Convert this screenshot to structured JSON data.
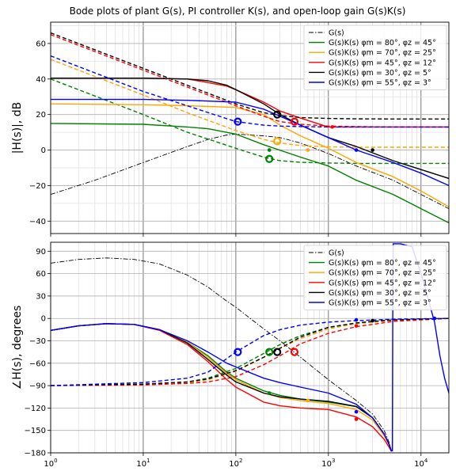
{
  "figure": {
    "title": "Bode plots of plant G(s), PI controller K(s), and open-loop gain G(s)K(s)"
  },
  "chart_data": [
    {
      "type": "line",
      "panel": "magnitude",
      "ylabel": "|H(s)|, dB",
      "xlabel": "",
      "xscale": "log",
      "xlim": [
        1,
        20000
      ],
      "ylim": [
        -47,
        72
      ],
      "yticks": [
        -40,
        -20,
        0,
        20,
        40,
        60
      ],
      "grid": true,
      "legend_position": "top-right",
      "colors": {
        "plant": "#000000",
        "pm80": "#008000",
        "pm70": "#ffa500",
        "pm45": "#ff0000",
        "pm30": "#000000",
        "pm55": "#0000ff"
      },
      "legend": [
        {
          "label": "G(s)",
          "color": "#000000",
          "style": "dashdot"
        },
        {
          "label": "G(s)K(s) φm = 80°, φz = 45°",
          "color": "#008000",
          "style": "solid"
        },
        {
          "label": "G(s)K(s) φm = 70°, φz = 25°",
          "color": "#ffa500",
          "style": "solid"
        },
        {
          "label": "G(s)K(s) φm = 45°, φz = 12°",
          "color": "#ff0000",
          "style": "solid"
        },
        {
          "label": "G(s)K(s) φm = 30°, φz = 5°",
          "color": "#000000",
          "style": "solid"
        },
        {
          "label": "G(s)K(s) φm = 55°, φz = 3°",
          "color": "#0000ff",
          "style": "solid"
        }
      ],
      "series": [
        {
          "name": "G(s)",
          "color": "#000000",
          "style": "dashdot",
          "x": [
            1,
            3,
            10,
            30,
            50,
            80,
            100,
            200,
            300,
            500,
            1000,
            2000,
            5000,
            10000,
            20000
          ],
          "y": [
            -25,
            -17,
            -7,
            2,
            6,
            8.5,
            9,
            8,
            7,
            4,
            -2,
            -9,
            -17,
            -25,
            -33
          ]
        },
        {
          "name": "K(s) φm=80°",
          "color": "#008000",
          "style": "dashed",
          "x": [
            1,
            10,
            30,
            100,
            200,
            300,
            500,
            1000,
            2000,
            5000,
            20000
          ],
          "y": [
            40,
            20,
            10,
            1,
            -4,
            -6,
            -6.9,
            -7.3,
            -7.5,
            -7.5,
            -7.5
          ]
        },
        {
          "name": "G(s)K(s) φm=80°",
          "color": "#008000",
          "style": "solid",
          "x": [
            1,
            10,
            30,
            50,
            100,
            200,
            500,
            1000,
            2000,
            5000,
            10000,
            20000
          ],
          "y": [
            15,
            14.5,
            13,
            12,
            9,
            3,
            -4,
            -9,
            -17,
            -25,
            -33,
            -41
          ]
        },
        {
          "name": "K(s) φm=70°",
          "color": "#ffa500",
          "style": "dashed",
          "x": [
            1,
            10,
            30,
            100,
            200,
            300,
            500,
            1000,
            2000,
            5000,
            20000
          ],
          "y": [
            51,
            31,
            21,
            11,
            6,
            4,
            2.5,
            1.8,
            1.6,
            1.6,
            1.6
          ]
        },
        {
          "name": "G(s)K(s) φm=70°",
          "color": "#ffa500",
          "style": "solid",
          "x": [
            1,
            10,
            30,
            100,
            200,
            300,
            500,
            1000,
            2000,
            5000,
            10000,
            20000
          ],
          "y": [
            26,
            25.5,
            25,
            24,
            20,
            14,
            8,
            1,
            -7,
            -15,
            -23,
            -32
          ]
        },
        {
          "name": "K(s) φm=45°",
          "color": "#ff0000",
          "style": "dashed",
          "x": [
            1,
            10,
            100,
            200,
            300,
            500,
            1000,
            2000,
            5000,
            20000
          ],
          "y": [
            65,
            45,
            25,
            19,
            16,
            14.5,
            13.5,
            13.2,
            13,
            13
          ]
        },
        {
          "name": "G(s)K(s) φm=45°",
          "color": "#ff0000",
          "style": "solid",
          "x": [
            1,
            10,
            30,
            50,
            80,
            100,
            200,
            300,
            500,
            1000,
            2000,
            5000,
            20000
          ],
          "y": [
            40.5,
            40.5,
            40,
            38,
            36,
            34,
            27,
            22,
            18,
            13,
            13,
            13,
            13
          ]
        },
        {
          "name": "K(s) φm=30°",
          "color": "#000000",
          "style": "dashed",
          "x": [
            1,
            10,
            100,
            200,
            300,
            500,
            1000,
            2000,
            5000,
            20000
          ],
          "y": [
            66,
            46,
            26,
            21,
            19.5,
            18.3,
            17.8,
            17.6,
            17.5,
            17.5
          ]
        },
        {
          "name": "G(s)K(s) φm=30°",
          "color": "#000000",
          "style": "solid",
          "x": [
            1,
            10,
            30,
            50,
            80,
            100,
            200,
            300,
            500,
            1000,
            2000,
            5000,
            10000,
            20000
          ],
          "y": [
            40.5,
            40.5,
            40,
            39,
            36.5,
            34,
            26,
            20,
            14,
            7,
            2,
            -6,
            -11,
            -16
          ]
        },
        {
          "name": "K(s) φm=55°",
          "color": "#0000ff",
          "style": "dashed",
          "x": [
            1,
            10,
            100,
            200,
            300,
            500,
            1000,
            2000,
            5000,
            20000
          ],
          "y": [
            53,
            33,
            16,
            14,
            13.5,
            13.2,
            13,
            13,
            13,
            13
          ]
        },
        {
          "name": "G(s)K(s) φm=55°",
          "color": "#0000ff",
          "style": "solid",
          "x": [
            1,
            10,
            30,
            100,
            200,
            300,
            500,
            1000,
            2000,
            5000,
            10000,
            20000
          ],
          "y": [
            28.5,
            28.5,
            28,
            27,
            23,
            19,
            14,
            7,
            0,
            -7,
            -13,
            -20
          ]
        }
      ],
      "markers": [
        {
          "x": 230,
          "y": -5,
          "color": "#008000",
          "kind": "circle"
        },
        {
          "x": 280,
          "y": 5,
          "color": "#ffa500",
          "kind": "circle"
        },
        {
          "x": 430,
          "y": 16,
          "color": "#ff0000",
          "kind": "circle"
        },
        {
          "x": 280,
          "y": 20,
          "color": "#000000",
          "kind": "circle"
        },
        {
          "x": 105,
          "y": 16,
          "color": "#0000ff",
          "kind": "circle"
        },
        {
          "x": 230,
          "y": 0,
          "color": "#008000",
          "kind": "dot"
        },
        {
          "x": 600,
          "y": 0,
          "color": "#ffa500",
          "kind": "dot"
        },
        {
          "x": 1100,
          "y": 13,
          "color": "#ff0000",
          "kind": "dot"
        },
        {
          "x": 3000,
          "y": 0,
          "color": "#000000",
          "kind": "dot"
        },
        {
          "x": 2000,
          "y": 0,
          "color": "#0000ff",
          "kind": "dot"
        }
      ]
    },
    {
      "type": "line",
      "panel": "phase",
      "ylabel": "∠H(s), degrees",
      "xlabel": "",
      "xscale": "log",
      "xlim": [
        1,
        20000
      ],
      "ylim": [
        -180,
        102
      ],
      "yticks": [
        -180,
        -150,
        -120,
        -90,
        -60,
        -30,
        0,
        30,
        60,
        90
      ],
      "xticks": [
        1,
        10,
        100,
        1000,
        10000
      ],
      "xticklabels": [
        "10^0",
        "10^1",
        "10^2",
        "10^3",
        "10^4"
      ],
      "grid": true,
      "legend_position": "top-right",
      "legend": [
        {
          "label": "G(s)",
          "color": "#000000",
          "style": "dashdot"
        },
        {
          "label": "G(s)K(s) φm = 80°, φz = 45°",
          "color": "#008000",
          "style": "solid"
        },
        {
          "label": "G(s)K(s) φm = 70°, φz = 25°",
          "color": "#ffa500",
          "style": "solid"
        },
        {
          "label": "G(s)K(s) φm = 45°, φz = 12°",
          "color": "#ff0000",
          "style": "solid"
        },
        {
          "label": "G(s)K(s) φm = 30°, φz = 5°",
          "color": "#000000",
          "style": "solid"
        },
        {
          "label": "G(s)K(s) φm = 55°, φz = 3°",
          "color": "#0000ff",
          "style": "solid"
        }
      ],
      "series": [
        {
          "name": "G(s)",
          "color": "#000000",
          "style": "dashdot",
          "x": [
            1,
            2,
            4,
            8,
            15,
            30,
            50,
            80,
            100,
            200,
            300,
            500,
            1000,
            2000,
            3000,
            4000,
            4500,
            4800
          ],
          "y": [
            74,
            79,
            81,
            79,
            73,
            58,
            42,
            23,
            15,
            -14,
            -30,
            -52,
            -82,
            -110,
            -128,
            -150,
            -165,
            -178
          ]
        },
        {
          "name": "K(s) φm=80°",
          "color": "#008000",
          "style": "dashed",
          "x": [
            1,
            10,
            30,
            50,
            100,
            200,
            300,
            500,
            1000,
            2000,
            5000,
            20000
          ],
          "y": [
            -90,
            -88,
            -85,
            -80,
            -67,
            -47,
            -35,
            -23,
            -12,
            -6,
            -2,
            0
          ]
        },
        {
          "name": "G(s)K(s) φm=80°",
          "color": "#008000",
          "style": "solid",
          "x": [
            1,
            2,
            4,
            8,
            15,
            30,
            50,
            80,
            100,
            200,
            300,
            500,
            1000,
            2000,
            3000,
            4000,
            4500,
            4800
          ],
          "y": [
            -16,
            -10,
            -7,
            -8,
            -15,
            -32,
            -50,
            -72,
            -80,
            -97,
            -103,
            -108,
            -112,
            -118,
            -133,
            -155,
            -168,
            -178
          ]
        },
        {
          "name": "K(s) φm=70°",
          "color": "#ffa500",
          "style": "dashed",
          "x": [
            1,
            10,
            30,
            50,
            100,
            200,
            300,
            500,
            1000,
            2000,
            5000,
            20000
          ],
          "y": [
            -90,
            -88,
            -86,
            -82,
            -71,
            -52,
            -40,
            -27,
            -14,
            -7,
            -3,
            0
          ]
        },
        {
          "name": "G(s)K(s) φm=70°",
          "color": "#ffa500",
          "style": "solid",
          "x": [
            1,
            2,
            4,
            8,
            15,
            30,
            50,
            80,
            100,
            200,
            300,
            500,
            1000,
            2000,
            3000,
            4000,
            4500,
            4800
          ],
          "y": [
            -16,
            -10,
            -7,
            -8,
            -15,
            -32,
            -52,
            -74,
            -82,
            -100,
            -106,
            -110,
            -114,
            -122,
            -136,
            -157,
            -169,
            -178
          ]
        },
        {
          "name": "K(s) φm=45°",
          "color": "#ff0000",
          "style": "dashed",
          "x": [
            1,
            10,
            30,
            50,
            100,
            200,
            300,
            500,
            1000,
            2000,
            5000,
            20000
          ],
          "y": [
            -90,
            -89,
            -87,
            -85,
            -78,
            -62,
            -50,
            -34,
            -20,
            -11,
            -4,
            0
          ]
        },
        {
          "name": "G(s)K(s) φm=45°",
          "color": "#ff0000",
          "style": "solid",
          "x": [
            1,
            2,
            4,
            8,
            15,
            30,
            50,
            80,
            100,
            200,
            300,
            500,
            1000,
            2000,
            3000,
            4000,
            4500,
            4800
          ],
          "y": [
            -16,
            -10,
            -7,
            -8,
            -16,
            -35,
            -58,
            -82,
            -92,
            -112,
            -117,
            -120,
            -122,
            -132,
            -145,
            -162,
            -172,
            -178
          ]
        },
        {
          "name": "K(s) φm=30°",
          "color": "#000000",
          "style": "dashed",
          "x": [
            1,
            10,
            30,
            50,
            100,
            200,
            300,
            500,
            1000,
            2000,
            3000,
            5000,
            20000
          ],
          "y": [
            -90,
            -88,
            -85,
            -81,
            -70,
            -52,
            -40,
            -25,
            -12,
            -6,
            -4,
            -2,
            0
          ]
        },
        {
          "name": "G(s)K(s) φm=30°",
          "color": "#000000",
          "style": "solid",
          "x": [
            1,
            2,
            4,
            8,
            15,
            30,
            50,
            80,
            100,
            200,
            300,
            500,
            1000,
            2000,
            3000,
            4000,
            4500,
            4800
          ],
          "y": [
            -16,
            -10,
            -7,
            -8,
            -15,
            -33,
            -55,
            -76,
            -85,
            -100,
            -105,
            -108,
            -111,
            -118,
            -133,
            -155,
            -168,
            -178
          ]
        },
        {
          "name": "K(s) φm=55°",
          "color": "#0000ff",
          "style": "dashed",
          "x": [
            1,
            10,
            30,
            50,
            100,
            200,
            300,
            500,
            1000,
            2000,
            5000,
            20000
          ],
          "y": [
            -90,
            -86,
            -80,
            -72,
            -45,
            -23,
            -15,
            -9,
            -5,
            -3,
            -1,
            0
          ]
        },
        {
          "name": "G(s)K(s) φm=55°",
          "color": "#0000ff",
          "style": "solid",
          "x": [
            1,
            2,
            4,
            8,
            15,
            30,
            50,
            80,
            100,
            200,
            300,
            500,
            1000,
            2000,
            3000,
            4000,
            4500,
            4800
          ],
          "y": [
            -16,
            -10,
            -7,
            -8,
            -15,
            -30,
            -45,
            -60,
            -65,
            -80,
            -86,
            -92,
            -100,
            -115,
            -133,
            -155,
            -168,
            -178
          ]
        }
      ],
      "resonance_sweep": {
        "color": "#0000ff",
        "x": [
          4900,
          4950,
          5000,
          6000,
          8000,
          10000,
          12000,
          14000,
          16000,
          18000,
          20000
        ],
        "y": [
          -178,
          0,
          100,
          100,
          96,
          60,
          25,
          -5,
          -50,
          -80,
          -100
        ]
      },
      "markers": [
        {
          "x": 230,
          "y": -45,
          "color": "#008000",
          "kind": "circle"
        },
        {
          "x": 280,
          "y": -45,
          "color": "#000000",
          "kind": "circle"
        },
        {
          "x": 430,
          "y": -45,
          "color": "#ff0000",
          "kind": "circle"
        },
        {
          "x": 105,
          "y": -45,
          "color": "#0000ff",
          "kind": "circle"
        },
        {
          "x": 230,
          "y": -100,
          "color": "#008000",
          "kind": "dot"
        },
        {
          "x": 600,
          "y": -110,
          "color": "#ffa500",
          "kind": "dot"
        },
        {
          "x": 2000,
          "y": -135,
          "color": "#ff0000",
          "kind": "dot"
        },
        {
          "x": 2000,
          "y": -125,
          "color": "#0000ff",
          "kind": "dot"
        },
        {
          "x": 3000,
          "y": -3,
          "color": "#000000",
          "kind": "dot"
        },
        {
          "x": 2000,
          "y": -10,
          "color": "#ff0000",
          "kind": "dot"
        },
        {
          "x": 2000,
          "y": -2,
          "color": "#0000ff",
          "kind": "dot"
        },
        {
          "x": 14000,
          "y": 0,
          "color": "#0000ff",
          "kind": "dot"
        }
      ]
    }
  ]
}
